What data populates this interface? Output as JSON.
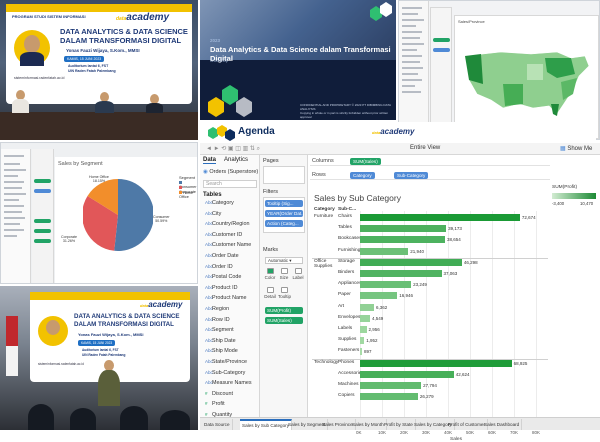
{
  "banner": {
    "program": "PROGRAM STUDI SISTEM INFORMASI",
    "logo_word": "academy",
    "logo_prefix": "data",
    "title_line1": "DATA ANALYTICS & DATA SCIENCE",
    "title_line2": "DALAM TRANSFORMASI DIGITAL",
    "speaker": "Yonas Fauzi Wijaya, S.Kom., MMSI",
    "date": "KAMIS, 15 JUNI 2023",
    "place_line1": "Auditorium lantai 6, FST",
    "place_line2": "UIN Raden Fatah Palembang",
    "web": "sisteminformasi.radenfatah.ac.id"
  },
  "slide": {
    "year": "2023",
    "title": "Data Analytics & Data Science dalam Transformasi Digital",
    "subtitle": "Workshop",
    "footer": "CONFIDENTIAL AND PROPRIETARY © 2023 PT DIBIMBING DATA ANALIYSIS\nCopying in whole or in part is strictly forbidden without prior written approval"
  },
  "map_mini": {
    "title": "Sales/Province"
  },
  "agenda": {
    "title": "Agenda",
    "logo_prefix": "data",
    "logo_word": "academy"
  },
  "pie_mini": {
    "title": "Sales by Segment",
    "legend_title": "Segment",
    "legend": [
      {
        "label": "Consumer",
        "color": "#4e79a7"
      },
      {
        "label": "Corporate",
        "color": "#e15759"
      },
      {
        "label": "Home Office",
        "color": "#f28e2b"
      }
    ],
    "slice_labels": [
      "Home Office\n18.15%",
      "Corporate\n31.26%",
      "Consumer\n50.59%"
    ]
  },
  "tableau": {
    "toolbar": {
      "entire_view": "Entire View",
      "show_me": "Show Me"
    },
    "data_pane": {
      "tab_data": "Data",
      "tab_analytics": "Analytics",
      "source": "Orders (Superstore)",
      "search_placeholder": "Search",
      "tables_header": "Tables",
      "dimensions": [
        "Category",
        "City",
        "Country/Region",
        "Customer ID",
        "Customer Name",
        "Order Date",
        "Order ID",
        "Postal Code",
        "Product ID",
        "Product Name",
        "Region",
        "Row ID",
        "Segment",
        "Ship Date",
        "Ship Mode",
        "State/Province",
        "Sub-Category",
        "Measure Names"
      ],
      "measures": [
        "Discount",
        "Profit",
        "Quantity",
        "Sales"
      ]
    },
    "shelves": {
      "pages": "Pages",
      "filters": "Filters",
      "filter_pills": [
        "Tooltip (Sig...",
        "YEAR(Order Dat...",
        "Action (Categ..."
      ],
      "marks": "Marks",
      "marks_type": "Automatic",
      "marks_cells": [
        "Color",
        "Size",
        "Label",
        "Detail",
        "Tooltip"
      ],
      "marks_pills": [
        "SUM(Profit)",
        "SUM(Sales)"
      ],
      "columns_label": "Columns",
      "rows_label": "Rows",
      "columns_pill": "SUM(Sales)",
      "rows_pills": [
        "Category",
        "Sub-Category"
      ]
    },
    "view": {
      "title": "Sales by Sub Category",
      "col_category": "Category",
      "col_subcategory": "Sub-C..."
    },
    "legend": {
      "title": "SUM(Profit)",
      "min": "-3,400",
      "max": "10,470"
    },
    "sheet_tabs": [
      "Data Source",
      "Sales by Sub Category",
      "Sales by Segment",
      "Sales Province",
      "Sales by Month",
      "Profit by State",
      "Sales by Category",
      "Profit of Customer",
      "Sales Dashboard"
    ]
  },
  "chart_data": {
    "type": "bar",
    "title": "Sales by Sub Category",
    "xlabel": "Sales",
    "ylabel": "",
    "xlim": [
      0,
      80000
    ],
    "x_ticks": [
      "0K",
      "10K",
      "20K",
      "30K",
      "40K",
      "50K",
      "60K",
      "70K",
      "80K"
    ],
    "groups": [
      {
        "category": "Furniture",
        "items": [
          {
            "sub": "Chairs",
            "value": 72674
          },
          {
            "sub": "Tables",
            "value": 39173
          },
          {
            "sub": "Bookcases",
            "value": 38654
          },
          {
            "sub": "Furnishings",
            "value": 21940
          }
        ]
      },
      {
        "category": "Office Supplies",
        "items": [
          {
            "sub": "Storage",
            "value": 46298
          },
          {
            "sub": "Binders",
            "value": 37063
          },
          {
            "sub": "Appliances",
            "value": 23249
          },
          {
            "sub": "Paper",
            "value": 16946
          },
          {
            "sub": "Art",
            "value": 6362
          },
          {
            "sub": "Envelopes",
            "value": 4549
          },
          {
            "sub": "Labels",
            "value": 2956
          },
          {
            "sub": "Supplies",
            "value": 1952
          },
          {
            "sub": "Fasteners",
            "value": 897
          }
        ]
      },
      {
        "category": "Technology",
        "items": [
          {
            "sub": "Phones",
            "value": 68925
          },
          {
            "sub": "Accessories",
            "value": 42624
          },
          {
            "sub": "Machines",
            "value": 27794
          },
          {
            "sub": "Copiers",
            "value": 26279
          }
        ]
      }
    ],
    "colors": {
      "low": "#a8dca8",
      "high": "#1a9a35"
    }
  }
}
